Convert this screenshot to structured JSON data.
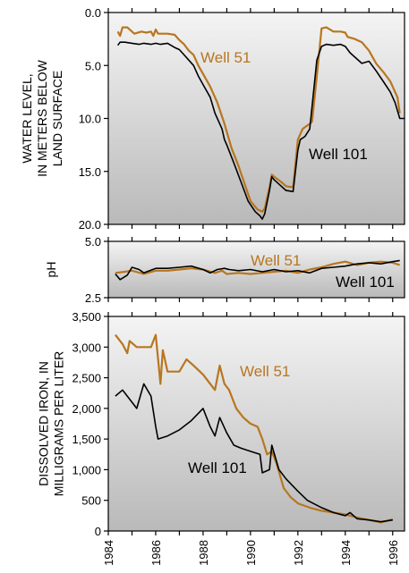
{
  "chart_data": [
    {
      "type": "line",
      "ylabel_lines": [
        "WATER LEVEL,",
        "IN METERS BELOW",
        "LAND SURFACE"
      ],
      "ylim": [
        20,
        0
      ],
      "yticks": [
        "0.0",
        "5.0",
        "10.0",
        "15.0",
        "20.0"
      ],
      "ytick_values": [
        0,
        5,
        10,
        15,
        20
      ],
      "xlim": [
        1984,
        1996.5
      ],
      "series": [
        {
          "name": "Well 51",
          "color": "#b8761f",
          "points": [
            [
              1984.4,
              1.8
            ],
            [
              1984.5,
              2.2
            ],
            [
              1984.6,
              1.4
            ],
            [
              1984.8,
              1.4
            ],
            [
              1985.1,
              2.0
            ],
            [
              1985.4,
              1.8
            ],
            [
              1985.6,
              1.9
            ],
            [
              1985.8,
              1.8
            ],
            [
              1985.9,
              2.2
            ],
            [
              1986.0,
              1.6
            ],
            [
              1986.1,
              2.0
            ],
            [
              1986.5,
              2.0
            ],
            [
              1986.8,
              2.1
            ],
            [
              1987.0,
              2.6
            ],
            [
              1987.2,
              3.0
            ],
            [
              1987.4,
              3.6
            ],
            [
              1987.6,
              4.0
            ],
            [
              1987.8,
              5.0
            ],
            [
              1988.0,
              5.8
            ],
            [
              1988.3,
              7.0
            ],
            [
              1988.6,
              8.5
            ],
            [
              1988.9,
              10.5
            ],
            [
              1989.2,
              12.8
            ],
            [
              1989.5,
              14.5
            ],
            [
              1989.8,
              16.5
            ],
            [
              1990.0,
              17.8
            ],
            [
              1990.3,
              18.6
            ],
            [
              1990.5,
              18.8
            ],
            [
              1990.6,
              18.5
            ],
            [
              1990.8,
              16.5
            ],
            [
              1990.9,
              15.3
            ],
            [
              1991.0,
              15.5
            ],
            [
              1991.3,
              16.0
            ],
            [
              1991.5,
              16.4
            ],
            [
              1991.8,
              16.5
            ],
            [
              1992.0,
              12.0
            ],
            [
              1992.2,
              11.0
            ],
            [
              1992.5,
              10.5
            ],
            [
              1992.6,
              10.3
            ],
            [
              1992.8,
              6.0
            ],
            [
              1993.0,
              1.5
            ],
            [
              1993.2,
              1.4
            ],
            [
              1993.5,
              1.8
            ],
            [
              1993.8,
              1.8
            ],
            [
              1994.0,
              1.9
            ],
            [
              1994.1,
              2.3
            ],
            [
              1994.4,
              2.5
            ],
            [
              1994.7,
              2.8
            ],
            [
              1995.0,
              3.6
            ],
            [
              1995.3,
              4.8
            ],
            [
              1995.6,
              5.6
            ],
            [
              1995.9,
              6.5
            ],
            [
              1996.2,
              8.0
            ],
            [
              1996.3,
              9.5
            ]
          ]
        },
        {
          "name": "Well 101",
          "color": "#000000",
          "points": [
            [
              1984.4,
              3.1
            ],
            [
              1984.5,
              2.8
            ],
            [
              1984.7,
              2.8
            ],
            [
              1985.0,
              2.9
            ],
            [
              1985.3,
              3.0
            ],
            [
              1985.5,
              2.9
            ],
            [
              1985.8,
              3.0
            ],
            [
              1986.0,
              2.9
            ],
            [
              1986.2,
              3.0
            ],
            [
              1986.5,
              2.9
            ],
            [
              1986.8,
              3.3
            ],
            [
              1987.0,
              3.5
            ],
            [
              1987.2,
              4.0
            ],
            [
              1987.4,
              4.5
            ],
            [
              1987.6,
              5.0
            ],
            [
              1987.8,
              6.0
            ],
            [
              1988.0,
              6.8
            ],
            [
              1988.3,
              8.0
            ],
            [
              1988.5,
              9.5
            ],
            [
              1988.8,
              11.0
            ],
            [
              1988.9,
              12.0
            ],
            [
              1989.0,
              12.5
            ],
            [
              1989.3,
              14.2
            ],
            [
              1989.6,
              16.0
            ],
            [
              1989.9,
              17.8
            ],
            [
              1990.2,
              18.8
            ],
            [
              1990.4,
              19.2
            ],
            [
              1990.5,
              19.5
            ],
            [
              1990.6,
              19.0
            ],
            [
              1990.8,
              16.8
            ],
            [
              1990.9,
              15.5
            ],
            [
              1991.0,
              15.8
            ],
            [
              1991.3,
              16.4
            ],
            [
              1991.5,
              16.8
            ],
            [
              1991.8,
              16.9
            ],
            [
              1992.0,
              13.0
            ],
            [
              1992.1,
              12.0
            ],
            [
              1992.3,
              11.7
            ],
            [
              1992.5,
              11.0
            ],
            [
              1992.8,
              4.5
            ],
            [
              1993.0,
              3.2
            ],
            [
              1993.2,
              3.0
            ],
            [
              1993.5,
              3.1
            ],
            [
              1993.8,
              3.0
            ],
            [
              1994.0,
              3.2
            ],
            [
              1994.2,
              3.8
            ],
            [
              1994.5,
              4.4
            ],
            [
              1994.7,
              4.8
            ],
            [
              1995.0,
              4.6
            ],
            [
              1995.3,
              5.5
            ],
            [
              1995.6,
              6.5
            ],
            [
              1995.9,
              7.5
            ],
            [
              1996.1,
              8.5
            ],
            [
              1996.3,
              10.0
            ],
            [
              1996.5,
              10.0
            ]
          ]
        }
      ]
    },
    {
      "type": "line",
      "ylabel_lines": [
        "pH"
      ],
      "ylim": [
        2.5,
        5.0
      ],
      "yticks": [
        "2.5",
        "5.0"
      ],
      "ytick_values": [
        2.5,
        5.0
      ],
      "xlim": [
        1984,
        1996.5
      ],
      "series": [
        {
          "name": "Well 51",
          "color": "#b8761f",
          "points": [
            [
              1984.3,
              3.6
            ],
            [
              1984.7,
              3.65
            ],
            [
              1985.0,
              3.7
            ],
            [
              1985.5,
              3.55
            ],
            [
              1986.0,
              3.7
            ],
            [
              1986.5,
              3.7
            ],
            [
              1987.0,
              3.75
            ],
            [
              1987.5,
              3.8
            ],
            [
              1988.0,
              3.75
            ],
            [
              1988.5,
              3.6
            ],
            [
              1988.8,
              3.7
            ],
            [
              1989.0,
              3.55
            ],
            [
              1989.5,
              3.6
            ],
            [
              1990.0,
              3.55
            ],
            [
              1990.5,
              3.6
            ],
            [
              1991.0,
              3.65
            ],
            [
              1991.5,
              3.7
            ],
            [
              1992.0,
              3.6
            ],
            [
              1992.5,
              3.75
            ],
            [
              1993.0,
              3.85
            ],
            [
              1993.5,
              4.0
            ],
            [
              1994.0,
              4.1
            ],
            [
              1994.5,
              3.95
            ],
            [
              1995.0,
              4.05
            ],
            [
              1995.5,
              4.1
            ],
            [
              1996.0,
              4.05
            ],
            [
              1996.3,
              3.95
            ]
          ]
        },
        {
          "name": "Well 101",
          "color": "#000000",
          "points": [
            [
              1984.3,
              3.55
            ],
            [
              1984.5,
              3.3
            ],
            [
              1984.8,
              3.5
            ],
            [
              1985.0,
              3.85
            ],
            [
              1985.3,
              3.75
            ],
            [
              1985.5,
              3.6
            ],
            [
              1986.0,
              3.8
            ],
            [
              1986.5,
              3.8
            ],
            [
              1987.0,
              3.85
            ],
            [
              1987.5,
              3.9
            ],
            [
              1988.0,
              3.75
            ],
            [
              1988.3,
              3.6
            ],
            [
              1988.6,
              3.75
            ],
            [
              1988.9,
              3.8
            ],
            [
              1989.1,
              3.75
            ],
            [
              1989.5,
              3.7
            ],
            [
              1990.0,
              3.75
            ],
            [
              1990.5,
              3.65
            ],
            [
              1991.0,
              3.75
            ],
            [
              1991.5,
              3.65
            ],
            [
              1992.0,
              3.7
            ],
            [
              1992.5,
              3.6
            ],
            [
              1993.0,
              3.8
            ],
            [
              1993.5,
              3.85
            ],
            [
              1994.0,
              3.9
            ],
            [
              1994.5,
              4.0
            ],
            [
              1995.0,
              4.05
            ],
            [
              1995.5,
              4.0
            ],
            [
              1996.0,
              4.1
            ],
            [
              1996.3,
              4.15
            ]
          ]
        }
      ]
    },
    {
      "type": "line",
      "ylabel_lines": [
        "DISSOLVED IRON, IN",
        "MILLIGRAMS PER LITER"
      ],
      "ylim": [
        0,
        3500
      ],
      "yticks": [
        "0",
        "500",
        "1,000",
        "1,500",
        "2,000",
        "2,500",
        "3,000",
        "3,500"
      ],
      "ytick_values": [
        0,
        500,
        1000,
        1500,
        2000,
        2500,
        3000,
        3500
      ],
      "xlim": [
        1984,
        1996.5
      ],
      "xticks": [
        "1984",
        "1986",
        "1988",
        "1990",
        "1992",
        "1994",
        "1996"
      ],
      "xtick_values": [
        1984,
        1986,
        1988,
        1990,
        1992,
        1994,
        1996
      ],
      "series": [
        {
          "name": "Well 51",
          "color": "#b8761f",
          "points": [
            [
              1984.3,
              3200
            ],
            [
              1984.6,
              3050
            ],
            [
              1984.8,
              2900
            ],
            [
              1984.9,
              3100
            ],
            [
              1985.2,
              3000
            ],
            [
              1985.5,
              3000
            ],
            [
              1985.8,
              3000
            ],
            [
              1986.0,
              3200
            ],
            [
              1986.2,
              2400
            ],
            [
              1986.3,
              2950
            ],
            [
              1986.5,
              2600
            ],
            [
              1986.7,
              2600
            ],
            [
              1987.0,
              2600
            ],
            [
              1987.3,
              2800
            ],
            [
              1987.6,
              2700
            ],
            [
              1988.0,
              2550
            ],
            [
              1988.3,
              2400
            ],
            [
              1988.5,
              2300
            ],
            [
              1988.7,
              2700
            ],
            [
              1988.9,
              2400
            ],
            [
              1989.1,
              2300
            ],
            [
              1989.4,
              2000
            ],
            [
              1989.7,
              1850
            ],
            [
              1990.0,
              1750
            ],
            [
              1990.3,
              1700
            ],
            [
              1990.5,
              1500
            ],
            [
              1990.7,
              1250
            ],
            [
              1990.9,
              1300
            ],
            [
              1991.1,
              1100
            ],
            [
              1991.4,
              700
            ],
            [
              1991.7,
              550
            ],
            [
              1992.0,
              450
            ],
            [
              1992.5,
              380
            ],
            [
              1993.0,
              330
            ],
            [
              1993.5,
              300
            ],
            [
              1994.0,
              270
            ],
            [
              1994.5,
              220
            ],
            [
              1995.0,
              180
            ],
            [
              1995.5,
              140
            ],
            [
              1996.0,
              190
            ]
          ]
        },
        {
          "name": "Well 101",
          "color": "#000000",
          "points": [
            [
              1984.3,
              2200
            ],
            [
              1984.6,
              2300
            ],
            [
              1984.8,
              2200
            ],
            [
              1985.2,
              2000
            ],
            [
              1985.5,
              2400
            ],
            [
              1985.8,
              2200
            ],
            [
              1986.0,
              1700
            ],
            [
              1986.1,
              1500
            ],
            [
              1986.5,
              1550
            ],
            [
              1987.0,
              1650
            ],
            [
              1987.5,
              1800
            ],
            [
              1988.0,
              2000
            ],
            [
              1988.3,
              1700
            ],
            [
              1988.5,
              1550
            ],
            [
              1988.7,
              1850
            ],
            [
              1989.0,
              1600
            ],
            [
              1989.3,
              1400
            ],
            [
              1989.6,
              1350
            ],
            [
              1990.0,
              1300
            ],
            [
              1990.4,
              1250
            ],
            [
              1990.5,
              950
            ],
            [
              1990.8,
              1000
            ],
            [
              1990.9,
              1400
            ],
            [
              1991.2,
              1000
            ],
            [
              1991.5,
              850
            ],
            [
              1992.0,
              650
            ],
            [
              1992.4,
              500
            ],
            [
              1993.0,
              380
            ],
            [
              1993.5,
              300
            ],
            [
              1994.0,
              250
            ],
            [
              1994.2,
              300
            ],
            [
              1994.5,
              200
            ],
            [
              1995.0,
              180
            ],
            [
              1995.5,
              150
            ],
            [
              1996.0,
              180
            ]
          ]
        }
      ]
    }
  ],
  "labels": {
    "panel1_well51": "Well 51",
    "panel1_well101": "Well 101",
    "panel2_well51": "Well 51",
    "panel2_well101": "Well 101",
    "panel3_well51": "Well 51",
    "panel3_well101": "Well 101"
  },
  "colors": {
    "well51": "#b8761f",
    "well101": "#000000",
    "panel_fill_top": "#f4f4f4",
    "panel_fill_bottom": "#b9b9b9"
  }
}
